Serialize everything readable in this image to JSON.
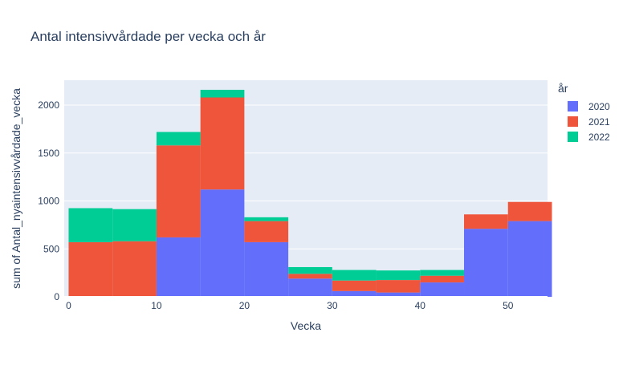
{
  "chart_data": {
    "type": "bar",
    "barmode": "stack",
    "title": "Antal intensivvårdade per vecka och år",
    "xlabel": "Vecka",
    "ylabel": "sum of Antal_nyaintensivvårdade_vecka",
    "bin_width": 5,
    "bin_starts": [
      0,
      5,
      10,
      15,
      20,
      25,
      30,
      35,
      40,
      45,
      50
    ],
    "xlim": [
      -0.5,
      54.5
    ],
    "ylim": [
      0,
      2260
    ],
    "x_ticks": [
      0,
      10,
      20,
      30,
      40,
      50
    ],
    "y_ticks": [
      0,
      500,
      1000,
      1500,
      2000
    ],
    "x_tick_labels": [
      "0",
      "10",
      "20",
      "30",
      "40",
      "50"
    ],
    "y_tick_labels": [
      "0",
      "500",
      "1000",
      "1500",
      "2000"
    ],
    "grid": true,
    "legend_title": "år",
    "legend_position": "top-right",
    "series": [
      {
        "name": "2020",
        "color": "#636efa",
        "values": [
          0,
          0,
          620,
          1120,
          570,
          190,
          60,
          45,
          150,
          710,
          790
        ]
      },
      {
        "name": "2021",
        "color": "#EF553B",
        "values": [
          570,
          580,
          960,
          960,
          220,
          50,
          110,
          130,
          70,
          150,
          200
        ]
      },
      {
        "name": "2022",
        "color": "#00cc96",
        "values": [
          355,
          335,
          140,
          80,
          40,
          70,
          110,
          100,
          60,
          0,
          0
        ]
      }
    ],
    "background_color": "#e5ecf6"
  }
}
